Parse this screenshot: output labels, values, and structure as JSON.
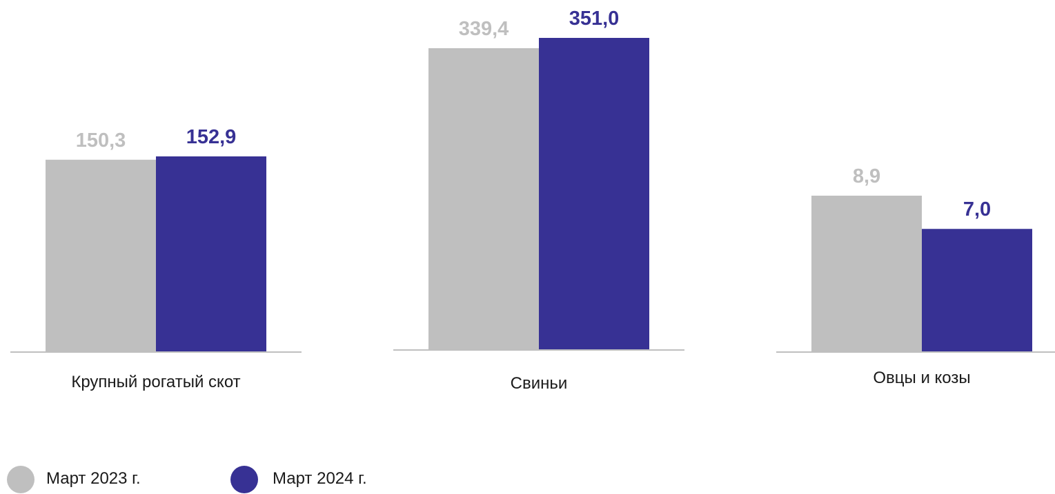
{
  "chart_data": {
    "type": "bar",
    "categories": [
      "Крупный рогатый скот",
      "Свиньи",
      "Овцы и козы"
    ],
    "series": [
      {
        "name": "Март 2023 г.",
        "values": [
          150.3,
          339.4,
          8.9
        ],
        "labels": [
          "150,3",
          "339,4",
          "8,9"
        ],
        "color": "#bfbfbf"
      },
      {
        "name": "Март 2024 г.",
        "values": [
          152.9,
          351.0,
          7.0
        ],
        "labels": [
          "152,9",
          "351,0",
          "7,0"
        ],
        "color": "#373194"
      }
    ],
    "grid": false,
    "legend_position": "bottom-left",
    "independent_scales": true
  }
}
